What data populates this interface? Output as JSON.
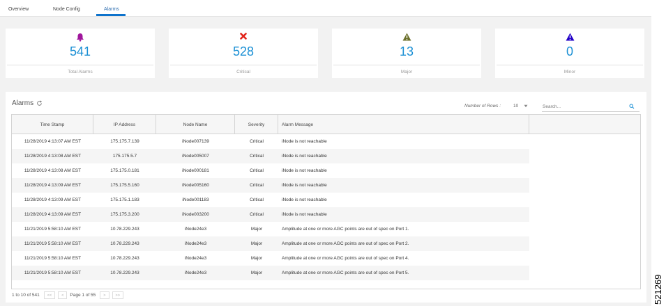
{
  "tabs": [
    {
      "label": "Overview",
      "active": false
    },
    {
      "label": "Node Config",
      "active": false
    },
    {
      "label": "Alarms",
      "active": true
    }
  ],
  "summary_cards": [
    {
      "count": "541",
      "label": "Total Alarms",
      "icon": "bell-icon",
      "icon_color": "#a0169c"
    },
    {
      "count": "528",
      "label": "Critical",
      "icon": "x-mark-icon",
      "icon_color": "#e2231a"
    },
    {
      "count": "13",
      "label": "Major",
      "icon": "warning-triangle-icon",
      "icon_color": "#6b6f2a"
    },
    {
      "count": "0",
      "label": "Minor",
      "icon": "warning-triangle-icon",
      "icon_color": "#2200c8"
    }
  ],
  "alarms_panel": {
    "title": "Alarms",
    "rows_label": "Number of Rows :",
    "rows_value": "10",
    "search": {
      "placeholder": "Search...",
      "value": ""
    }
  },
  "table": {
    "columns": [
      "Time Stamp",
      "IP Address",
      "Node Name",
      "Severity",
      "Alarm Message"
    ],
    "rows": [
      [
        "11/28/2019 4:13:07 AM EST",
        "175.175.7.139",
        "iNode007139",
        "Critical",
        "iNode is not reachable"
      ],
      [
        "11/28/2019 4:13:08 AM EST",
        "175.175.5.7",
        "iNode005007",
        "Critical",
        "iNode is not reachable"
      ],
      [
        "11/28/2019 4:13:08 AM EST",
        "175.175.0.181",
        "iNode000181",
        "Critical",
        "iNode is not reachable"
      ],
      [
        "11/28/2019 4:13:09 AM EST",
        "175.175.5.160",
        "iNode005160",
        "Critical",
        "iNode is not reachable"
      ],
      [
        "11/28/2019 4:13:09 AM EST",
        "175.175.1.183",
        "iNode001183",
        "Critical",
        "iNode is not reachable"
      ],
      [
        "11/28/2019 4:13:09 AM EST",
        "175.175.3.200",
        "iNode003200",
        "Critical",
        "iNode is not reachable"
      ],
      [
        "11/21/2019 5:58:10 AM EST",
        "10.78.229.243",
        "iNode24e3",
        "Major",
        "Amplitude at one or more AGC points are out of spec on Port 1."
      ],
      [
        "11/21/2019 5:58:10 AM EST",
        "10.78.229.243",
        "iNode24e3",
        "Major",
        "Amplitude at one or more AGC points are out of spec on Port 2."
      ],
      [
        "11/21/2019 5:58:10 AM EST",
        "10.78.229.243",
        "iNode24e3",
        "Major",
        "Amplitude at one or more AGC points are out of spec on Port 4."
      ],
      [
        "11/21/2019 5:58:10 AM EST",
        "10.78.229.243",
        "iNode24e3",
        "Major",
        "Amplitude at one or more AGC points are out of spec on Port 5."
      ]
    ]
  },
  "pagination": {
    "range_text": "1 to 10 of 541",
    "first": "<<",
    "prev": "<",
    "page_text": "Page 1 of 55",
    "next": ">",
    "last": ">>"
  },
  "figure_number": "521269",
  "colors": {
    "accent": "#0e73cc",
    "count_blue": "#1a8fd4"
  }
}
